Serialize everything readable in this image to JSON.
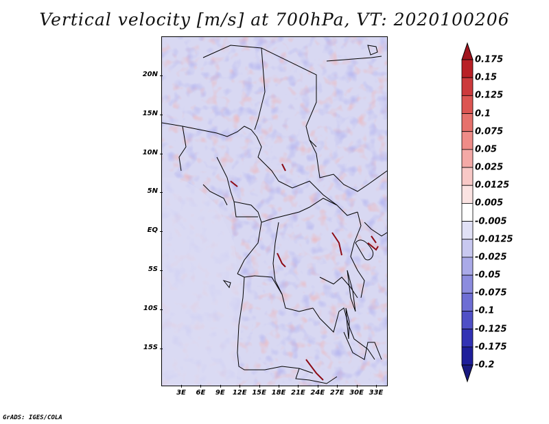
{
  "title": "Vertical velocity [m/s] at 700hPa, VT: 2020100206",
  "credit": "GrADS: IGES/COLA",
  "lat_labels": [
    "20N",
    "15N",
    "10N",
    "5N",
    "EQ",
    "5S",
    "10S",
    "15S"
  ],
  "lon_labels": [
    "3E",
    "6E",
    "9E",
    "12E",
    "15E",
    "18E",
    "21E",
    "24E",
    "27E",
    "30E",
    "33E"
  ],
  "colorbar": {
    "labels": [
      "0.175",
      "0.15",
      "0.125",
      "0.1",
      "0.075",
      "0.05",
      "0.025",
      "0.0125",
      "0.005",
      "-0.005",
      "-0.0125",
      "-0.025",
      "-0.05",
      "-0.075",
      "-0.1",
      "-0.125",
      "-0.175",
      "-0.2"
    ],
    "colors": [
      "#a0141e",
      "#b82026",
      "#cc3a3c",
      "#dc5552",
      "#e6716c",
      "#ef8c88",
      "#f4a9a6",
      "#f8c8c6",
      "#fbe3e2",
      "#ffffff",
      "#e1e1f6",
      "#c8c8f0",
      "#aaaae8",
      "#8c8cde",
      "#6e6ed4",
      "#5050c6",
      "#3232b4",
      "#1e1e9a",
      "#1a1a80"
    ]
  }
}
